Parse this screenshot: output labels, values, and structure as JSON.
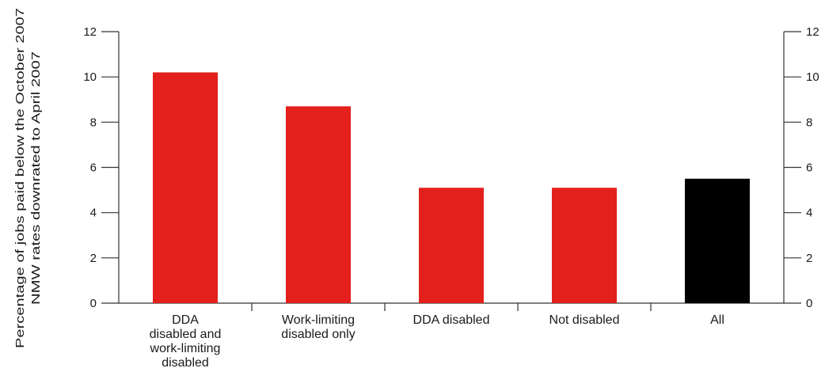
{
  "chart_data": {
    "type": "bar",
    "categories": [
      [
        "DDA",
        "disabled and",
        "work-limiting",
        "disabled"
      ],
      [
        "Work-limiting",
        "disabled only"
      ],
      [
        "DDA disabled"
      ],
      [
        "Not disabled"
      ],
      [
        "All"
      ]
    ],
    "values": [
      10.2,
      8.7,
      5.1,
      5.1,
      5.5
    ],
    "bar_colors": [
      "#e3201b",
      "#e3201b",
      "#e3201b",
      "#e3201b",
      "#000000"
    ],
    "ylabel": [
      "Percentage of jobs paid below the October 2007",
      "NMW rates downrated to April 2007"
    ],
    "xlabel": "",
    "title": "",
    "ylim": [
      0,
      12
    ],
    "yticks": [
      0,
      2,
      4,
      6,
      8,
      10,
      12
    ],
    "right_axis_ticks": [
      "0",
      "2",
      "4",
      "6",
      "8",
      "10",
      "12"
    ],
    "grid": false
  }
}
